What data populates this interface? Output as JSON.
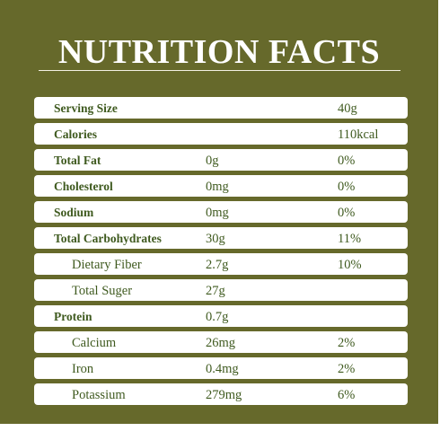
{
  "title": "NUTRITION FACTS",
  "rows": [
    {
      "label": "Serving Size",
      "bold": true,
      "indent": false,
      "amount": "40g",
      "wide": true,
      "dv": ""
    },
    {
      "label": "Calories",
      "bold": true,
      "indent": false,
      "amount": "110kcal",
      "wide": true,
      "dv": ""
    },
    {
      "label": "Total  Fat",
      "bold": true,
      "indent": false,
      "amount": "0g",
      "wide": false,
      "dv": "0%"
    },
    {
      "label": "Cholesterol",
      "bold": true,
      "indent": false,
      "amount": "0mg",
      "wide": false,
      "dv": "0%"
    },
    {
      "label": "Sodium",
      "bold": true,
      "indent": false,
      "amount": "0mg",
      "wide": false,
      "dv": "0%"
    },
    {
      "label": "Total Carbohydrates",
      "bold": true,
      "indent": false,
      "amount": "30g",
      "wide": false,
      "dv": "11%"
    },
    {
      "label": "Dietary Fiber",
      "bold": false,
      "indent": true,
      "amount": "2.7g",
      "wide": false,
      "dv": "10%"
    },
    {
      "label": "Total Suger",
      "bold": false,
      "indent": true,
      "amount": "27g",
      "wide": false,
      "dv": ""
    },
    {
      "label": "Protein",
      "bold": true,
      "indent": false,
      "amount": "0.7g",
      "wide": false,
      "dv": ""
    },
    {
      "label": "Calcium",
      "bold": false,
      "indent": true,
      "amount": "26mg",
      "wide": false,
      "dv": "2%"
    },
    {
      "label": "Iron",
      "bold": false,
      "indent": true,
      "amount": "0.4mg",
      "wide": false,
      "dv": "2%"
    },
    {
      "label": "Potassium",
      "bold": false,
      "indent": true,
      "amount": "279mg",
      "wide": false,
      "dv": "6%"
    }
  ]
}
